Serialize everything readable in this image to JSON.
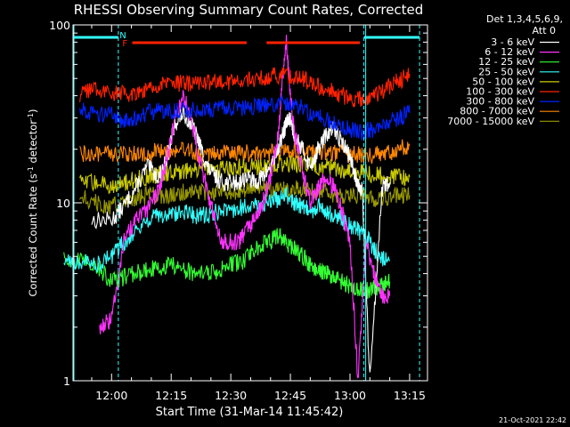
{
  "chart_data": {
    "type": "line",
    "title": "RHESSI Observing Summary Count Rates, Corrected",
    "xlabel": "Start Time (31-Mar-14 11:45:42)",
    "ylabel": "Corrected Count Rate (s",
    "ylabel_sup1": "-1",
    "ylabel_mid": " detector",
    "ylabel_sup2": "-1",
    "ylabel_end": ")",
    "yscale": "log",
    "ylim": [
      1,
      100
    ],
    "xlim_minutes": [
      -9.7,
      79.5
    ],
    "x_ticks": [
      {
        "m": 0,
        "label": "12:00"
      },
      {
        "m": 15,
        "label": "12:15"
      },
      {
        "m": 30,
        "label": "12:30"
      },
      {
        "m": 45,
        "label": "12:45"
      },
      {
        "m": 60,
        "label": "13:00"
      },
      {
        "m": 75,
        "label": "13:15"
      }
    ],
    "y_ticks": [
      {
        "v": 1,
        "label": "1"
      },
      {
        "v": 10,
        "label": "10"
      },
      {
        "v": 100,
        "label": "100"
      }
    ],
    "legend_header": [
      "Det 1,3,4,5,6,9,",
      "Att 0"
    ],
    "series": [
      {
        "name": "3 - 6 keV",
        "color": "#ffffff",
        "x": [
          -5,
          0,
          3,
          6,
          9,
          12,
          14,
          16,
          18,
          20,
          22,
          24,
          26,
          28,
          30,
          32,
          34,
          36,
          38,
          40,
          42,
          43,
          44,
          45,
          46,
          48,
          50,
          52,
          54,
          56,
          58,
          60,
          61,
          62,
          63,
          65,
          68,
          70
        ],
        "y": [
          8,
          8,
          9.5,
          12,
          16,
          14,
          18,
          28,
          32,
          28,
          22,
          16,
          14,
          13,
          13,
          13,
          14,
          13,
          14,
          16,
          20,
          24,
          28,
          30,
          24,
          20,
          16,
          20,
          24,
          26,
          22,
          18,
          15,
          13,
          12,
          1,
          12,
          13
        ]
      },
      {
        "name": "6 - 12 keV",
        "color": "#ff33ff",
        "x": [
          -3,
          0,
          3,
          6,
          9,
          12,
          14,
          16,
          18,
          20,
          22,
          24,
          26,
          28,
          30,
          32,
          34,
          36,
          38,
          40,
          42,
          43,
          44,
          45,
          46,
          48,
          50,
          52,
          54,
          56,
          58,
          60,
          62,
          64,
          66,
          68,
          70
        ],
        "y": [
          2,
          2.2,
          6,
          8,
          9,
          12,
          18,
          30,
          40,
          30,
          18,
          12,
          8,
          6,
          6,
          6,
          7,
          8,
          10,
          14,
          25,
          50,
          80,
          40,
          25,
          15,
          10,
          12,
          14,
          12,
          9,
          6,
          1,
          6,
          4,
          3,
          3
        ]
      },
      {
        "name": "12 - 25 keV",
        "color": "#33ff33",
        "x": [
          -12,
          -8,
          -4,
          0,
          3,
          6,
          9,
          12,
          15,
          18,
          21,
          24,
          27,
          30,
          33,
          36,
          39,
          42,
          44,
          46,
          48,
          50,
          52,
          54,
          56,
          58,
          60,
          62,
          64,
          66,
          68,
          70
        ],
        "y": [
          4.7,
          4.7,
          4.5,
          3.6,
          3.8,
          4,
          4.2,
          4.3,
          4.5,
          4.2,
          4,
          4,
          4.2,
          4.5,
          4.7,
          5.5,
          6,
          6.5,
          6,
          5.5,
          5,
          4.5,
          4.2,
          4,
          3.8,
          3.6,
          3.4,
          3.3,
          3.2,
          3.3,
          3.4,
          3.6
        ]
      },
      {
        "name": "25 - 50 keV",
        "color": "#33ffff",
        "x": [
          -12,
          -8,
          -4,
          0,
          3,
          6,
          9,
          12,
          15,
          18,
          21,
          24,
          27,
          30,
          33,
          36,
          39,
          42,
          44,
          46,
          48,
          50,
          52,
          54,
          56,
          58,
          60,
          62,
          64,
          66,
          68,
          70
        ],
        "y": [
          4.7,
          4.7,
          4.5,
          5,
          6,
          7,
          8,
          8.5,
          8.5,
          9,
          8.5,
          8.5,
          9,
          9,
          9.5,
          9.5,
          10,
          10.5,
          11,
          10,
          9.5,
          9,
          9.5,
          9,
          8.5,
          8,
          7.5,
          7,
          6.5,
          5.5,
          4.8,
          4.7
        ]
      },
      {
        "name": "50 - 100 keV",
        "color": "#cccc00",
        "x": [
          -8,
          -4,
          0,
          3,
          6,
          9,
          12,
          15,
          18,
          21,
          24,
          27,
          30,
          33,
          36,
          39,
          42,
          45,
          48,
          51,
          54,
          57,
          60,
          63,
          66,
          69,
          72,
          75
        ],
        "y": [
          13,
          13,
          12.5,
          13,
          13.5,
          14,
          14.5,
          15,
          15,
          15,
          15.5,
          15.5,
          15.5,
          16,
          16,
          16,
          16.5,
          16.5,
          16.5,
          16,
          16,
          15.5,
          15,
          15,
          14.5,
          14,
          14,
          14
        ]
      },
      {
        "name": "100 - 300 keV",
        "color": "#ff2200",
        "x": [
          -8,
          -4,
          0,
          3,
          6,
          9,
          12,
          15,
          18,
          21,
          24,
          27,
          30,
          33,
          36,
          39,
          42,
          45,
          48,
          51,
          54,
          57,
          60,
          63,
          66,
          69,
          72,
          75
        ],
        "y": [
          40,
          44,
          42,
          41,
          42,
          44,
          46,
          47,
          47,
          47,
          47,
          48,
          48,
          49,
          50,
          51,
          52,
          52,
          50,
          46,
          44,
          41,
          39,
          38,
          40,
          44,
          48,
          53
        ]
      },
      {
        "name": "300 - 800 keV",
        "color": "#0022ff",
        "x": [
          -8,
          -4,
          0,
          3,
          6,
          9,
          12,
          15,
          18,
          21,
          24,
          27,
          30,
          33,
          36,
          39,
          42,
          45,
          48,
          51,
          54,
          57,
          60,
          63,
          66,
          69,
          72,
          75
        ],
        "y": [
          34,
          32,
          31,
          29,
          30,
          32,
          33,
          33,
          33,
          33,
          33,
          34,
          34,
          34,
          35,
          35,
          36,
          36,
          34,
          31,
          29,
          27,
          26,
          25,
          26,
          28,
          30,
          32
        ]
      },
      {
        "name": "800 - 7000 keV",
        "color": "#ff8800",
        "x": [
          -8,
          -4,
          0,
          3,
          6,
          9,
          12,
          15,
          18,
          21,
          24,
          27,
          30,
          33,
          36,
          39,
          42,
          45,
          48,
          51,
          54,
          57,
          60,
          63,
          66,
          69,
          72,
          75
        ],
        "y": [
          19,
          19,
          18.5,
          19,
          19,
          19,
          19.5,
          19.5,
          19.5,
          19,
          19,
          19,
          19,
          19,
          19,
          19,
          19.5,
          19.5,
          19.5,
          19,
          19,
          19,
          19,
          18.5,
          18.5,
          19,
          20,
          21
        ]
      },
      {
        "name": "7000 - 15000 keV",
        "color": "#999900",
        "x": [
          -8,
          -4,
          0,
          3,
          6,
          9,
          12,
          15,
          18,
          21,
          24,
          27,
          30,
          33,
          36,
          39,
          42,
          45,
          48,
          51,
          54,
          57,
          60,
          63,
          66,
          69,
          72,
          75
        ],
        "y": [
          11,
          10,
          9.5,
          10,
          10.5,
          11,
          11,
          11,
          11.5,
          11.5,
          11.5,
          11.5,
          11.5,
          11.5,
          12,
          12,
          12,
          12,
          12,
          11.5,
          11.5,
          11,
          11,
          11,
          10.5,
          10.5,
          11,
          11
        ]
      }
    ],
    "annotations": {
      "N": {
        "m": 2,
        "label": "N",
        "color": "#33ffff"
      },
      "F": {
        "m": 2.7,
        "label": "F",
        "color": "#ff2200"
      },
      "night_bars": [
        {
          "m_start": -9.7,
          "m_end": 1.7,
          "color": "#33ffff"
        },
        {
          "m_start": 63.5,
          "m_end": 77.5,
          "color": "#33ffff"
        }
      ],
      "flare_bars": [
        {
          "m_start": 5.2,
          "m_end": 34,
          "color": "#ff2200"
        },
        {
          "m_start": 39,
          "m_end": 62.5,
          "color": "#ff2200"
        }
      ],
      "dashed_lines_m": [
        1.7,
        63.5,
        77.5
      ],
      "solid_line_m": -9.7,
      "solid_line_end_m": 63.5
    },
    "footer_timestamp": "21-Oct-2021 22:42"
  }
}
